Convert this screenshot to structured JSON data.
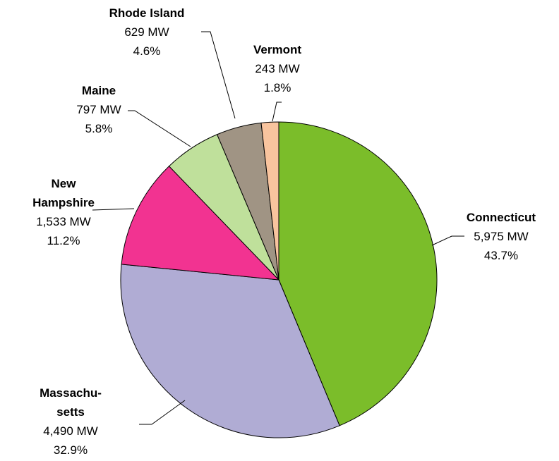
{
  "chart_data": {
    "type": "pie",
    "categories": [
      "Connecticut",
      "Massachu-\nsetts",
      "New\nHampshire",
      "Maine",
      "Rhode Island",
      "Vermont"
    ],
    "values": [
      5975,
      4490,
      1533,
      797,
      629,
      243
    ],
    "value_labels": [
      "5,975 MW",
      "4,490 MW",
      "1,533 MW",
      "797 MW",
      "629 MW",
      "243 MW"
    ],
    "percent_labels": [
      "43.7%",
      "32.9%",
      "11.2%",
      "5.8%",
      "4.6%",
      "1.8%"
    ],
    "colors": [
      "#7bbd2a",
      "#b0acd4",
      "#f23391",
      "#bfe09b",
      "#a09484",
      "#f9c49e"
    ]
  }
}
